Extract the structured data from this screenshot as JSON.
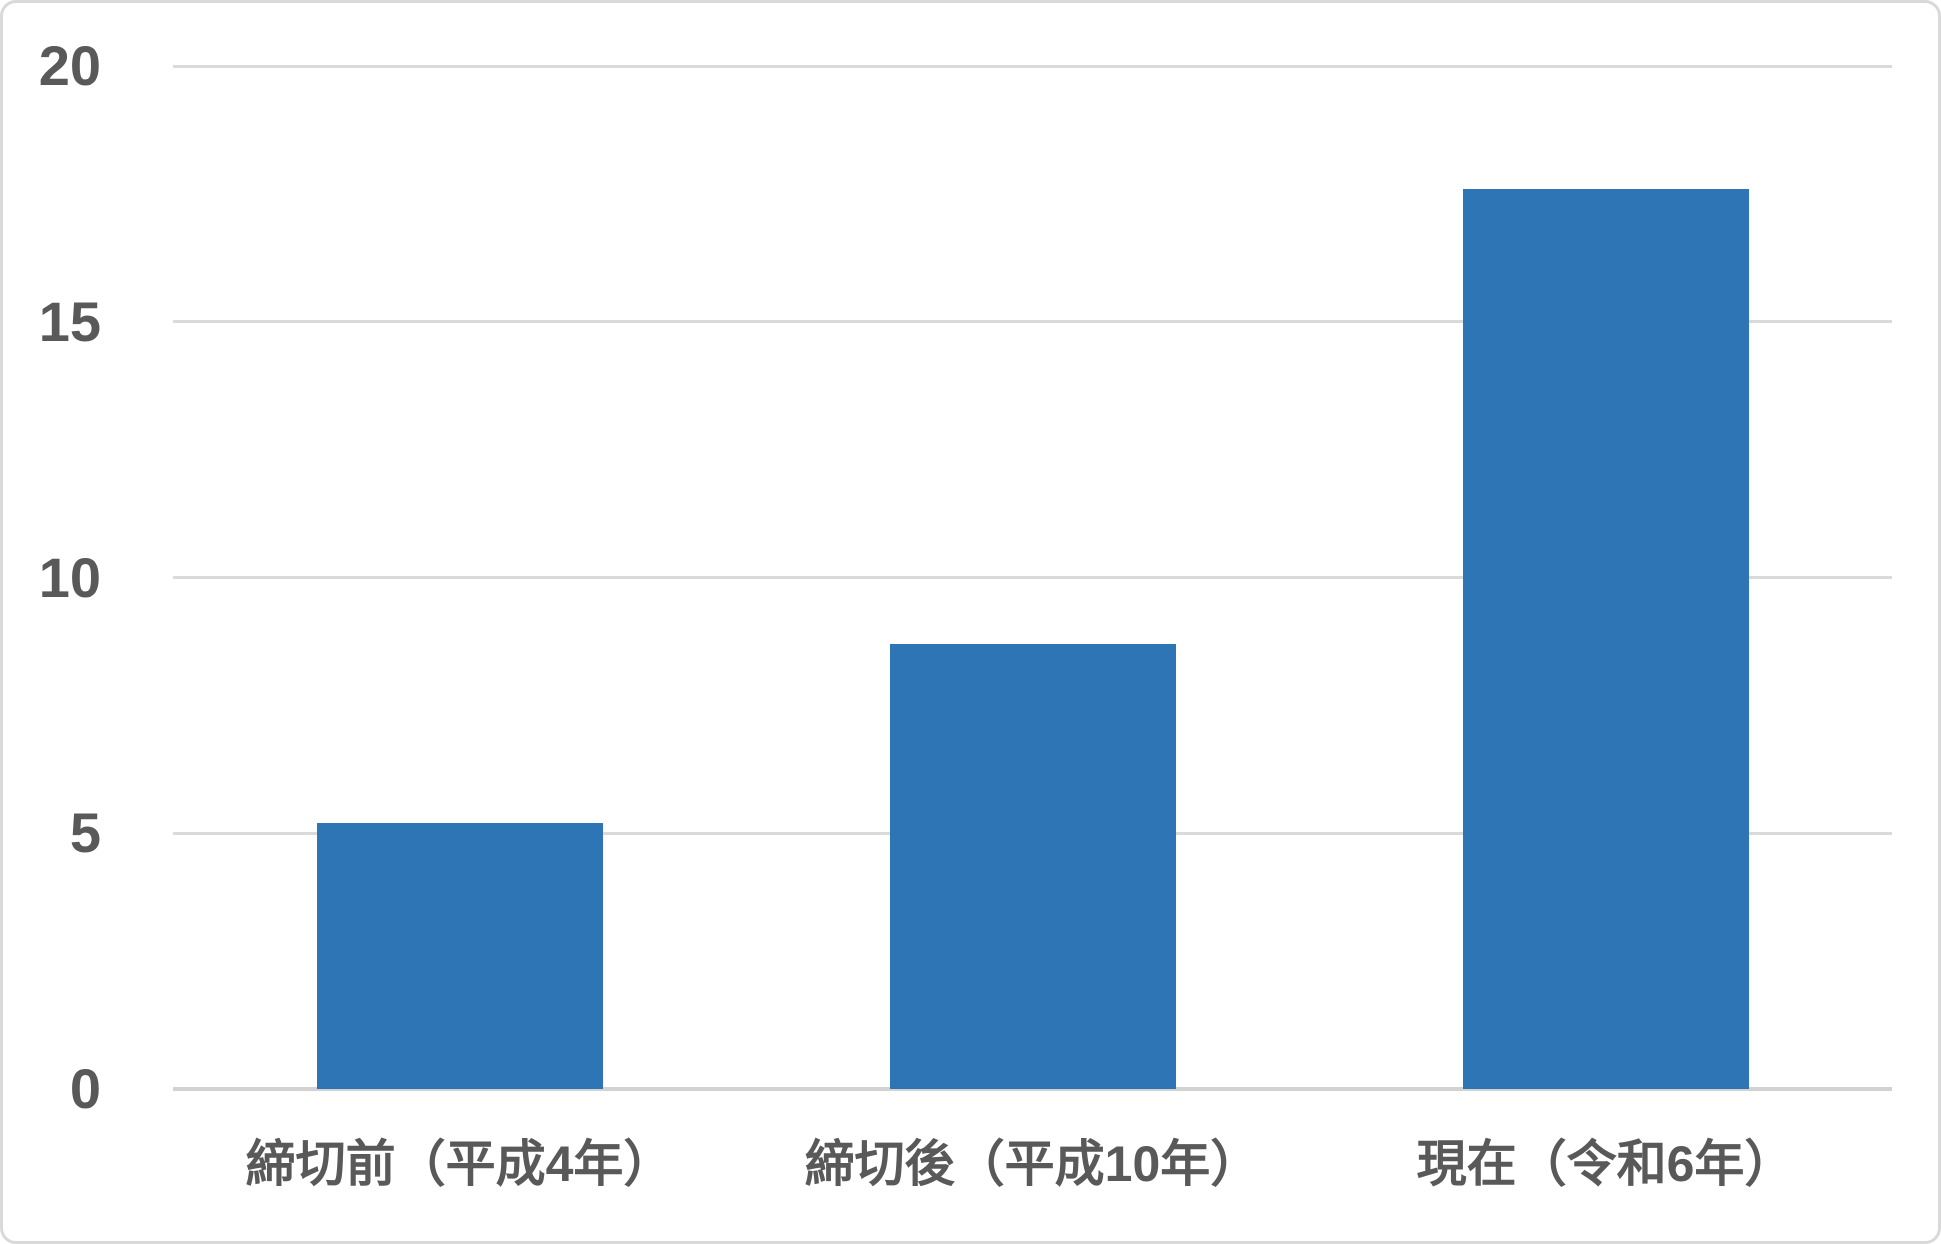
{
  "chart_data": {
    "type": "bar",
    "categories": [
      "締切前（平成4年）",
      "締切後（平成10年）",
      "現在（令和6年）"
    ],
    "values": [
      5.2,
      8.7,
      17.6
    ],
    "yticks": [
      "0",
      "5",
      "10",
      "15",
      "20"
    ],
    "ytick_values": [
      0,
      5,
      10,
      15,
      20
    ],
    "ylim": [
      0,
      20
    ],
    "grid": true,
    "legend": false,
    "colors": {
      "bar": "#2e75b6",
      "gridline": "#dadada",
      "axis_line": "#d2d2d2",
      "tick_label": "#595959",
      "background": "#ffffff",
      "frame_border": "#d9d9d9"
    }
  }
}
